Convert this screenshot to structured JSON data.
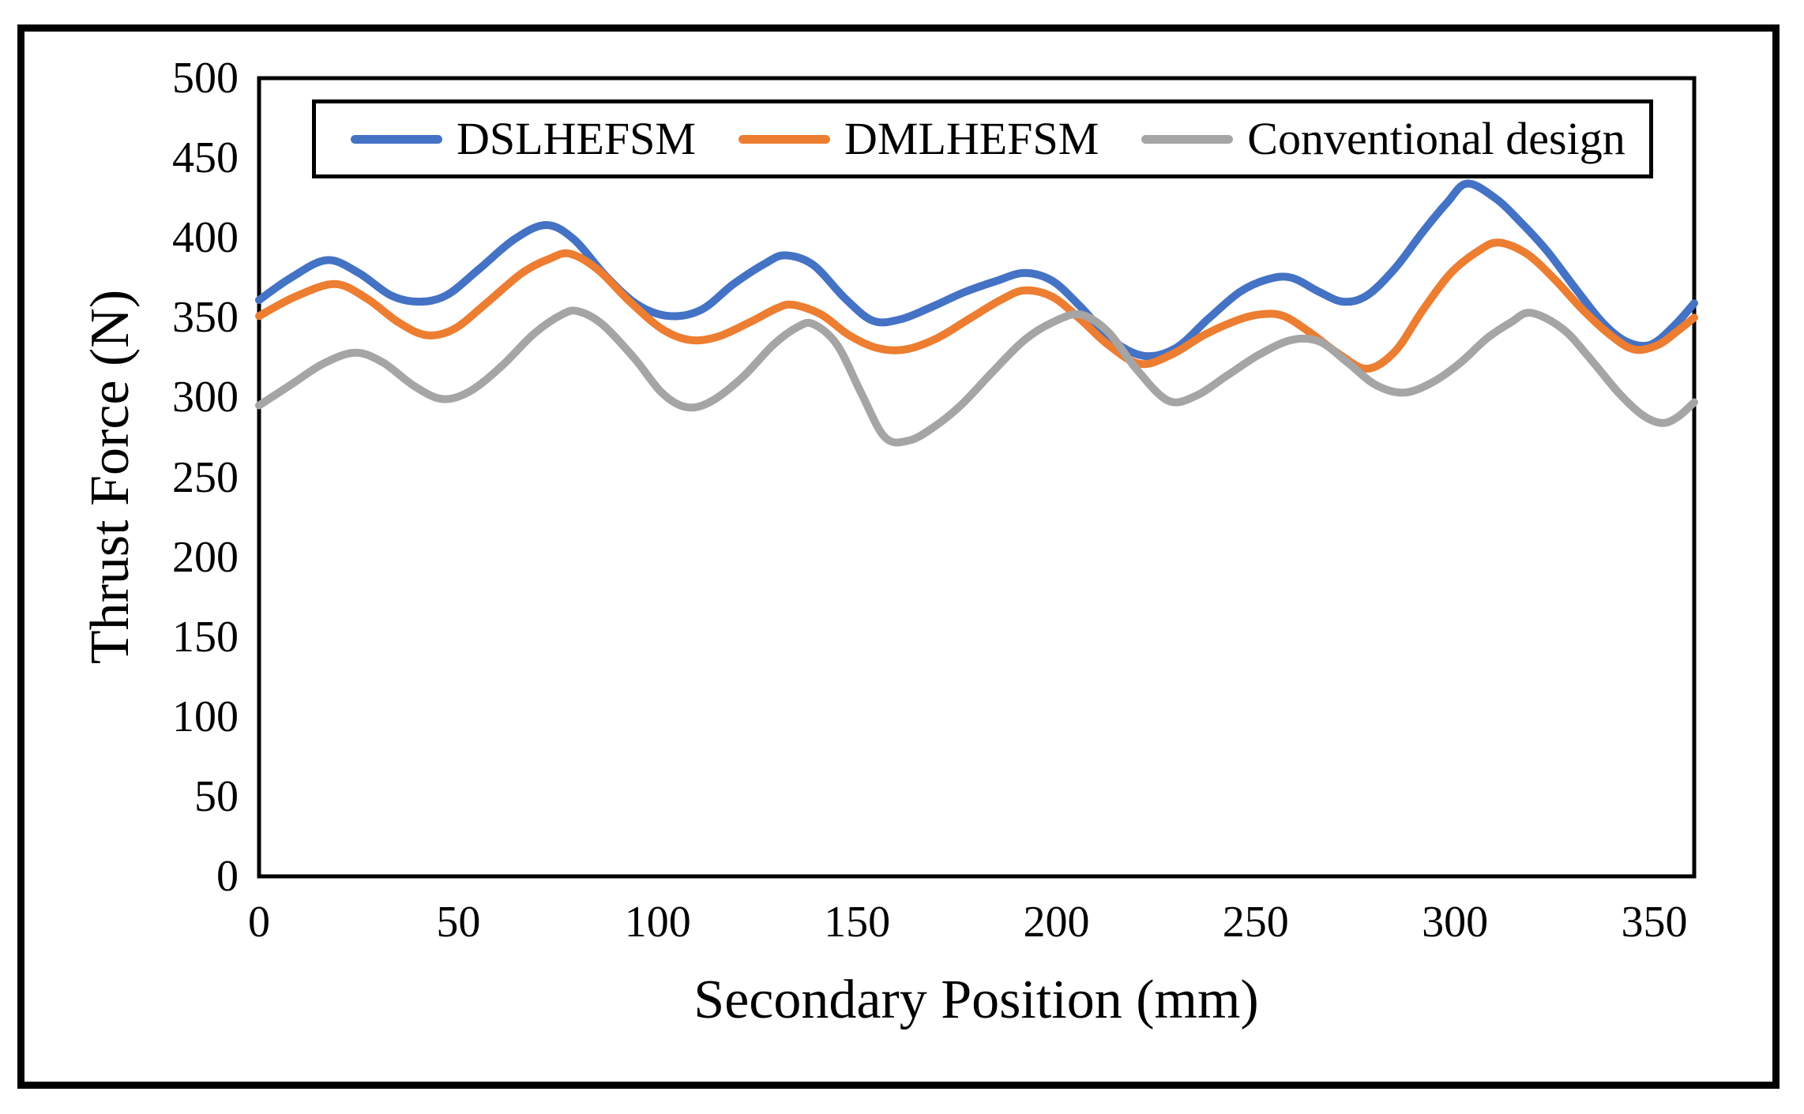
{
  "figure": {
    "background": "#ffffff",
    "frame_color": "#000000"
  },
  "legend": {
    "position": "top",
    "items": [
      {
        "label": "DSLHEFSM",
        "color": "#4472C4"
      },
      {
        "label": "DMLHEFSM",
        "color": "#ED7D31"
      },
      {
        "label": "Conventional design",
        "color": "#A5A5A5"
      }
    ]
  },
  "axes": {
    "x": {
      "title": "Secondary Position (mm)",
      "tick_labels": [
        "0",
        "50",
        "100",
        "150",
        "200",
        "250",
        "300",
        "350"
      ],
      "tick_values": [
        0,
        50,
        100,
        150,
        200,
        250,
        300,
        350
      ],
      "min": 0,
      "max": 360
    },
    "y": {
      "title": "Thrust Force (N)",
      "tick_labels": [
        "0",
        "50",
        "100",
        "150",
        "200",
        "250",
        "300",
        "350",
        "400",
        "450",
        "500"
      ],
      "tick_values": [
        0,
        50,
        100,
        150,
        200,
        250,
        300,
        350,
        400,
        450,
        500
      ],
      "min": 0,
      "max": 500
    }
  },
  "chart_data": {
    "type": "line",
    "title": "",
    "xlabel": "Secondary Position (mm)",
    "ylabel": "Thrust Force (N)",
    "xlim": [
      0,
      360
    ],
    "ylim": [
      0,
      500
    ],
    "grid": false,
    "legend_position": "top",
    "series": [
      {
        "name": "DSLHEFSM",
        "color": "#4472C4",
        "points": [
          [
            0,
            361
          ],
          [
            8,
            375
          ],
          [
            17,
            386
          ],
          [
            25,
            378
          ],
          [
            33,
            364
          ],
          [
            40,
            360
          ],
          [
            47,
            364
          ],
          [
            55,
            380
          ],
          [
            64,
            399
          ],
          [
            72,
            408
          ],
          [
            79,
            399
          ],
          [
            87,
            376
          ],
          [
            95,
            358
          ],
          [
            103,
            351
          ],
          [
            111,
            355
          ],
          [
            119,
            371
          ],
          [
            127,
            384
          ],
          [
            132,
            389
          ],
          [
            139,
            383
          ],
          [
            147,
            362
          ],
          [
            154,
            348
          ],
          [
            161,
            349
          ],
          [
            169,
            357
          ],
          [
            177,
            366
          ],
          [
            185,
            373
          ],
          [
            192,
            378
          ],
          [
            199,
            373
          ],
          [
            206,
            357
          ],
          [
            214,
            336
          ],
          [
            222,
            326
          ],
          [
            230,
            331
          ],
          [
            238,
            349
          ],
          [
            246,
            366
          ],
          [
            253,
            374
          ],
          [
            259,
            375
          ],
          [
            266,
            366
          ],
          [
            272,
            360
          ],
          [
            278,
            364
          ],
          [
            285,
            381
          ],
          [
            292,
            404
          ],
          [
            298,
            422
          ],
          [
            303,
            434
          ],
          [
            310,
            425
          ],
          [
            316,
            411
          ],
          [
            323,
            392
          ],
          [
            330,
            369
          ],
          [
            337,
            347
          ],
          [
            343,
            335
          ],
          [
            349,
            333
          ],
          [
            355,
            345
          ],
          [
            360,
            359
          ]
        ]
      },
      {
        "name": "DMLHEFSM",
        "color": "#ED7D31",
        "points": [
          [
            0,
            351
          ],
          [
            9,
            363
          ],
          [
            19,
            371
          ],
          [
            27,
            362
          ],
          [
            35,
            347
          ],
          [
            42,
            339
          ],
          [
            49,
            343
          ],
          [
            57,
            359
          ],
          [
            66,
            378
          ],
          [
            73,
            387
          ],
          [
            78,
            390
          ],
          [
            85,
            380
          ],
          [
            93,
            360
          ],
          [
            101,
            343
          ],
          [
            108,
            336
          ],
          [
            115,
            338
          ],
          [
            123,
            347
          ],
          [
            130,
            356
          ],
          [
            134,
            358
          ],
          [
            141,
            352
          ],
          [
            148,
            339
          ],
          [
            155,
            331
          ],
          [
            162,
            330
          ],
          [
            170,
            337
          ],
          [
            178,
            349
          ],
          [
            186,
            361
          ],
          [
            192,
            367
          ],
          [
            199,
            363
          ],
          [
            206,
            349
          ],
          [
            213,
            333
          ],
          [
            221,
            321
          ],
          [
            229,
            327
          ],
          [
            237,
            339
          ],
          [
            245,
            348
          ],
          [
            251,
            352
          ],
          [
            257,
            351
          ],
          [
            264,
            340
          ],
          [
            271,
            327
          ],
          [
            278,
            318
          ],
          [
            285,
            329
          ],
          [
            292,
            355
          ],
          [
            299,
            378
          ],
          [
            306,
            392
          ],
          [
            311,
            397
          ],
          [
            318,
            390
          ],
          [
            325,
            374
          ],
          [
            332,
            355
          ],
          [
            339,
            339
          ],
          [
            345,
            330
          ],
          [
            351,
            333
          ],
          [
            356,
            342
          ],
          [
            360,
            350
          ]
        ]
      },
      {
        "name": "Conventional design",
        "color": "#A5A5A5",
        "points": [
          [
            0,
            295
          ],
          [
            8,
            308
          ],
          [
            16,
            321
          ],
          [
            24,
            328
          ],
          [
            31,
            322
          ],
          [
            39,
            307
          ],
          [
            46,
            299
          ],
          [
            53,
            304
          ],
          [
            61,
            320
          ],
          [
            69,
            340
          ],
          [
            76,
            352
          ],
          [
            80,
            354
          ],
          [
            86,
            346
          ],
          [
            94,
            325
          ],
          [
            101,
            303
          ],
          [
            107,
            294
          ],
          [
            113,
            297
          ],
          [
            121,
            312
          ],
          [
            129,
            333
          ],
          [
            135,
            344
          ],
          [
            139,
            346
          ],
          [
            145,
            333
          ],
          [
            151,
            303
          ],
          [
            157,
            275
          ],
          [
            163,
            273
          ],
          [
            169,
            281
          ],
          [
            176,
            295
          ],
          [
            184,
            316
          ],
          [
            192,
            336
          ],
          [
            199,
            347
          ],
          [
            206,
            352
          ],
          [
            213,
            341
          ],
          [
            220,
            318
          ],
          [
            228,
            298
          ],
          [
            235,
            301
          ],
          [
            243,
            314
          ],
          [
            251,
            327
          ],
          [
            259,
            336
          ],
          [
            266,
            335
          ],
          [
            273,
            322
          ],
          [
            280,
            308
          ],
          [
            287,
            303
          ],
          [
            294,
            309
          ],
          [
            301,
            321
          ],
          [
            308,
            337
          ],
          [
            314,
            347
          ],
          [
            319,
            353
          ],
          [
            327,
            343
          ],
          [
            334,
            324
          ],
          [
            341,
            303
          ],
          [
            347,
            289
          ],
          [
            352,
            284
          ],
          [
            356,
            288
          ],
          [
            360,
            297
          ]
        ]
      }
    ]
  }
}
